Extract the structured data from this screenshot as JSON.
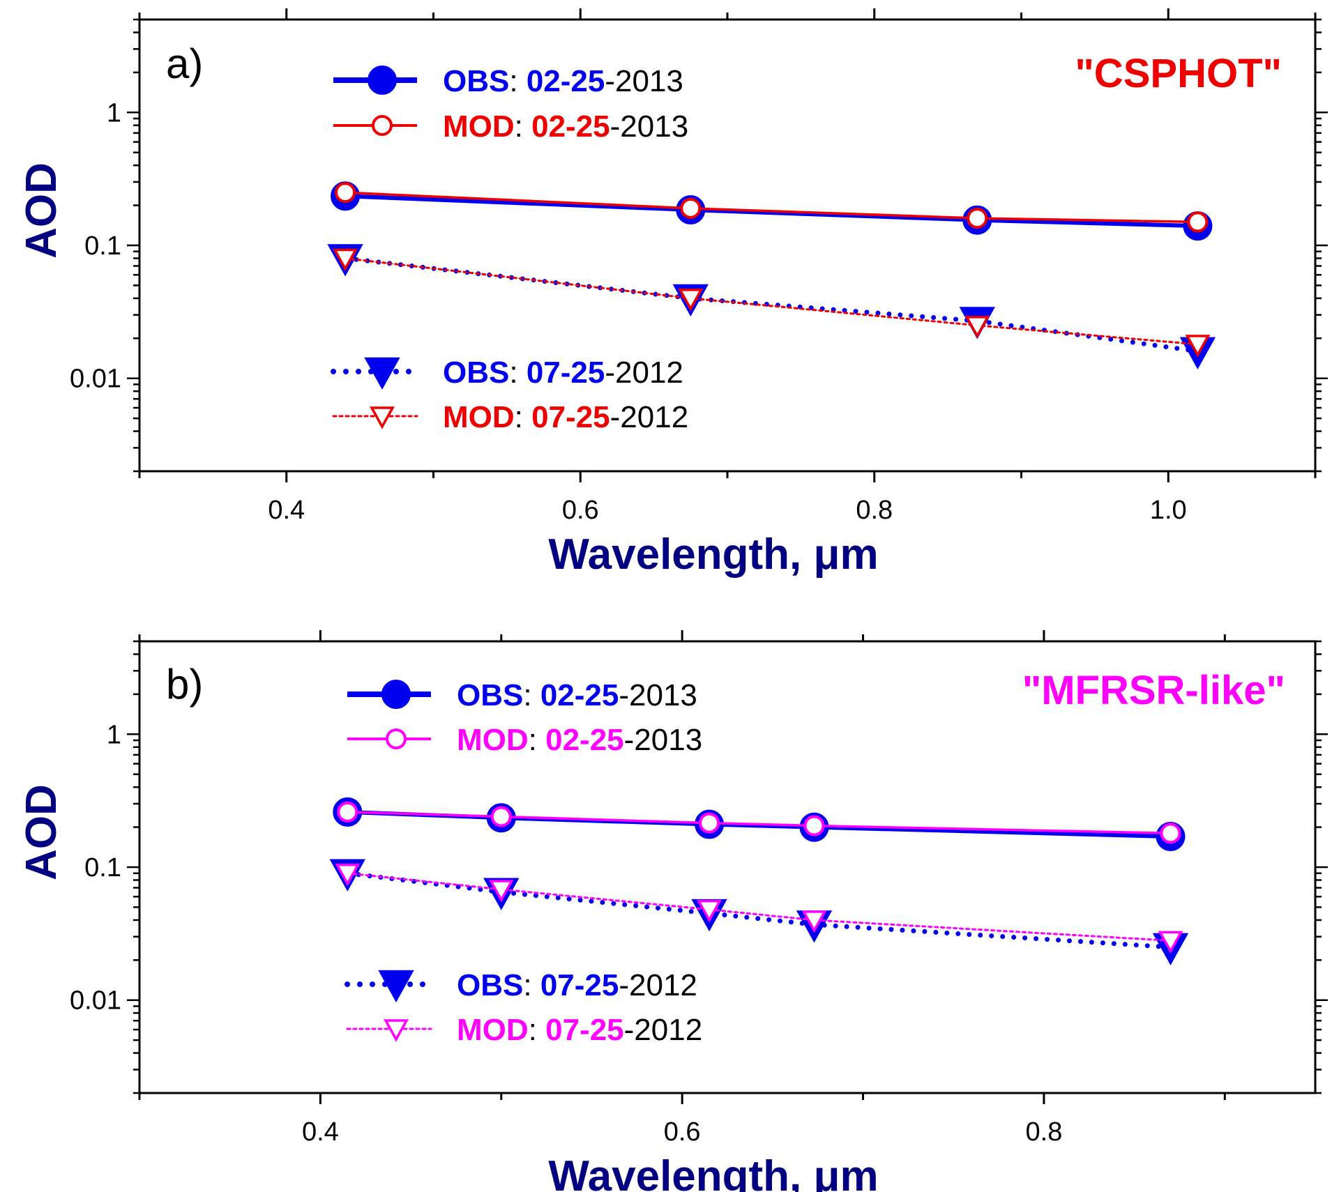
{
  "colors": {
    "obs": "#0000EE",
    "axis_title": "#000080",
    "panel_a_mod": "#EE0000",
    "panel_b_mod": "#FF00FF",
    "black": "#000000"
  },
  "chart_data": [
    {
      "type": "line",
      "panel_label": "a)",
      "title": "\"CSPHOT\"",
      "title_color": "#EE0000",
      "xlabel": "Wavelength, μm",
      "ylabel": "AOD",
      "yscale": "log",
      "xlim": [
        0.3,
        1.1
      ],
      "ylim": [
        0.002,
        5
      ],
      "xticks": [
        0.4,
        0.6,
        0.8,
        1.0
      ],
      "xtick_labels": [
        "0.4",
        "0.6",
        "0.8",
        "1.0"
      ],
      "xticks_minor": [
        0.3,
        0.5,
        0.7,
        0.9,
        1.1
      ],
      "yticks": [
        0.01,
        0.1,
        1
      ],
      "ytick_labels": [
        "0.01",
        "0.1",
        "1"
      ],
      "series": [
        {
          "name": "OBS: 02-25-2013",
          "group": "OBS",
          "date_md": "02-25",
          "year": "-2013",
          "color": "#0000EE",
          "line": "solid",
          "marker": "filled-circle",
          "x": [
            0.44,
            0.675,
            0.87,
            1.02
          ],
          "y": [
            0.235,
            0.185,
            0.155,
            0.14
          ]
        },
        {
          "name": "MOD: 02-25-2013",
          "group": "MOD",
          "date_md": "02-25",
          "year": "-2013",
          "color": "#EE0000",
          "line": "solid",
          "marker": "open-circle",
          "x": [
            0.44,
            0.675,
            0.87,
            1.02
          ],
          "y": [
            0.25,
            0.19,
            0.16,
            0.15
          ]
        },
        {
          "name": "OBS: 07-25-2012",
          "group": "OBS",
          "date_md": "07-25",
          "year": "-2012",
          "color": "#0000EE",
          "line": "dotted",
          "marker": "filled-triangle-down",
          "x": [
            0.44,
            0.675,
            0.87,
            1.02
          ],
          "y": [
            0.08,
            0.04,
            0.027,
            0.016
          ]
        },
        {
          "name": "MOD: 07-25-2012",
          "group": "MOD",
          "date_md": "07-25",
          "year": "-2012",
          "color": "#EE0000",
          "line": "dotted",
          "marker": "open-triangle-down",
          "x": [
            0.44,
            0.675,
            0.87,
            1.02
          ],
          "y": [
            0.08,
            0.04,
            0.025,
            0.018
          ]
        }
      ]
    },
    {
      "type": "line",
      "panel_label": "b)",
      "title": "\"MFRSR-like\"",
      "title_color": "#FF00FF",
      "xlabel": "Wavelength, μm",
      "ylabel": "AOD",
      "yscale": "log",
      "xlim": [
        0.3,
        0.95
      ],
      "ylim": [
        0.002,
        5
      ],
      "xticks": [
        0.4,
        0.6,
        0.8
      ],
      "xtick_labels": [
        "0.4",
        "0.6",
        "0.8"
      ],
      "xticks_minor": [
        0.3,
        0.5,
        0.7,
        0.9
      ],
      "yticks": [
        0.01,
        0.1,
        1
      ],
      "ytick_labels": [
        "0.01",
        "0.1",
        "1"
      ],
      "series": [
        {
          "name": "OBS: 02-25-2013",
          "group": "OBS",
          "date_md": "02-25",
          "year": "-2013",
          "color": "#0000EE",
          "line": "solid",
          "marker": "filled-circle",
          "x": [
            0.415,
            0.5,
            0.615,
            0.673,
            0.87
          ],
          "y": [
            0.26,
            0.235,
            0.21,
            0.2,
            0.17
          ]
        },
        {
          "name": "MOD: 02-25-2013",
          "group": "MOD",
          "date_md": "02-25",
          "year": "-2013",
          "color": "#FF00FF",
          "line": "solid",
          "marker": "open-circle",
          "x": [
            0.415,
            0.5,
            0.615,
            0.673,
            0.87
          ],
          "y": [
            0.26,
            0.24,
            0.215,
            0.205,
            0.18
          ]
        },
        {
          "name": "OBS: 07-25-2012",
          "group": "OBS",
          "date_md": "07-25",
          "year": "-2012",
          "color": "#0000EE",
          "line": "dotted",
          "marker": "filled-triangle-down",
          "x": [
            0.415,
            0.5,
            0.615,
            0.673,
            0.87
          ],
          "y": [
            0.09,
            0.065,
            0.045,
            0.037,
            0.025
          ]
        },
        {
          "name": "MOD: 07-25-2012",
          "group": "MOD",
          "date_md": "07-25",
          "year": "-2012",
          "color": "#FF00FF",
          "line": "dotted",
          "marker": "open-triangle-down",
          "x": [
            0.415,
            0.5,
            0.615,
            0.673,
            0.87
          ],
          "y": [
            0.09,
            0.068,
            0.048,
            0.04,
            0.028
          ]
        }
      ]
    }
  ]
}
